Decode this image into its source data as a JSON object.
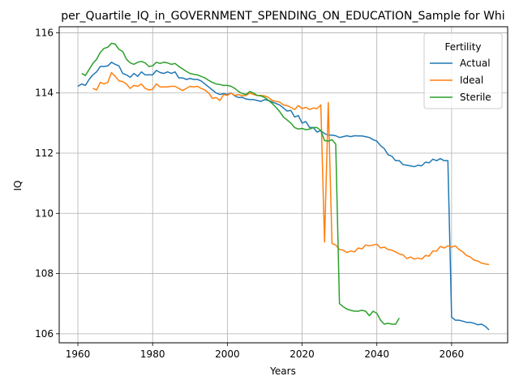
{
  "chart_data": {
    "type": "line",
    "title": "per_Quartile_IQ_in_GOVERNMENT_SPENDING_ON_EDUCATION_Sample for Whi",
    "xlabel": "Years",
    "ylabel": "IQ",
    "xlim": [
      1955,
      2075
    ],
    "ylim": [
      105.7,
      116.2
    ],
    "xticks": [
      1960,
      1980,
      2000,
      2020,
      2040,
      2060
    ],
    "yticks": [
      106,
      108,
      110,
      112,
      114,
      116
    ],
    "grid": true,
    "legend": {
      "title": "Fertility",
      "placement": "top-right"
    },
    "series": [
      {
        "name": "Actual",
        "color": "#1f77b4",
        "x": [
          1960,
          1961,
          1962,
          1963,
          1964,
          1965,
          1966,
          1967,
          1968,
          1969,
          1970,
          1971,
          1972,
          1973,
          1974,
          1975,
          1976,
          1977,
          1978,
          1979,
          1980,
          1981,
          1982,
          1983,
          1984,
          1985,
          1986,
          1987,
          1988,
          1989,
          1990,
          1991,
          1992,
          1993,
          1994,
          1995,
          1996,
          1997,
          1998,
          1999,
          2000,
          2001,
          2002,
          2003,
          2004,
          2005,
          2006,
          2007,
          2008,
          2009,
          2010,
          2011,
          2012,
          2013,
          2014,
          2015,
          2016,
          2017,
          2018,
          2019,
          2020,
          2021,
          2022,
          2023,
          2024,
          2025,
          2026,
          2027,
          2028,
          2029,
          2030,
          2031,
          2032,
          2033,
          2034,
          2035,
          2036,
          2037,
          2038,
          2039,
          2040,
          2041,
          2042,
          2043,
          2044,
          2045,
          2046,
          2047,
          2048,
          2049,
          2050,
          2051,
          2052,
          2053,
          2054,
          2055,
          2056,
          2057,
          2058,
          2059,
          2060,
          2061,
          2062,
          2063,
          2064,
          2065,
          2066,
          2067,
          2068,
          2069,
          2070
        ],
        "values": [
          114.22,
          114.3,
          114.25,
          114.45,
          114.6,
          114.7,
          114.88,
          114.88,
          114.9,
          115.02,
          114.95,
          114.9,
          114.65,
          114.6,
          114.52,
          114.65,
          114.55,
          114.7,
          114.6,
          114.6,
          114.6,
          114.75,
          114.68,
          114.65,
          114.7,
          114.65,
          114.7,
          114.5,
          114.5,
          114.45,
          114.48,
          114.45,
          114.45,
          114.4,
          114.3,
          114.2,
          114.1,
          114.0,
          113.95,
          113.98,
          113.95,
          114.0,
          113.9,
          113.85,
          113.85,
          113.8,
          113.78,
          113.78,
          113.75,
          113.72,
          113.78,
          113.75,
          113.7,
          113.65,
          113.6,
          113.5,
          113.4,
          113.42,
          113.2,
          113.25,
          113.0,
          113.05,
          112.85,
          112.85,
          112.7,
          112.75,
          112.65,
          112.6,
          112.6,
          112.58,
          112.52,
          112.55,
          112.58,
          112.55,
          112.58,
          112.57,
          112.57,
          112.55,
          112.52,
          112.45,
          112.4,
          112.25,
          112.15,
          111.95,
          111.9,
          111.75,
          111.75,
          111.62,
          111.6,
          111.58,
          111.55,
          111.6,
          111.58,
          111.7,
          111.68,
          111.8,
          111.75,
          111.82,
          111.75,
          111.75,
          106.55,
          106.45,
          106.45,
          106.42,
          106.38,
          106.38,
          106.35,
          106.3,
          106.32,
          106.25,
          106.13
        ]
      },
      {
        "name": "Ideal",
        "color": "#ff7f0e",
        "x": [
          1964,
          1965,
          1966,
          1967,
          1968,
          1969,
          1970,
          1971,
          1972,
          1973,
          1974,
          1975,
          1976,
          1977,
          1978,
          1979,
          1980,
          1981,
          1982,
          1983,
          1984,
          1985,
          1986,
          1987,
          1988,
          1989,
          1990,
          1991,
          1992,
          1993,
          1994,
          1995,
          1996,
          1997,
          1998,
          1999,
          2000,
          2001,
          2002,
          2003,
          2004,
          2005,
          2006,
          2007,
          2008,
          2009,
          2010,
          2011,
          2012,
          2013,
          2014,
          2015,
          2016,
          2017,
          2018,
          2019,
          2020,
          2021,
          2022,
          2023,
          2024,
          2025,
          2026,
          2027,
          2028,
          2029,
          2030,
          2031,
          2032,
          2033,
          2034,
          2035,
          2036,
          2037,
          2038,
          2039,
          2040,
          2041,
          2042,
          2043,
          2044,
          2045,
          2046,
          2047,
          2048,
          2049,
          2050,
          2051,
          2052,
          2053,
          2054,
          2055,
          2056,
          2057,
          2058,
          2059,
          2060,
          2061,
          2062,
          2063,
          2064,
          2065,
          2066,
          2067,
          2068,
          2069,
          2070
        ],
        "values": [
          114.15,
          114.1,
          114.35,
          114.3,
          114.35,
          114.68,
          114.55,
          114.4,
          114.38,
          114.3,
          114.15,
          114.25,
          114.22,
          114.3,
          114.15,
          114.1,
          114.12,
          114.3,
          114.2,
          114.2,
          114.2,
          114.22,
          114.22,
          114.15,
          114.08,
          114.15,
          114.22,
          114.2,
          114.22,
          114.15,
          114.1,
          114.0,
          113.82,
          113.85,
          113.75,
          113.95,
          113.92,
          114.0,
          113.92,
          113.95,
          113.9,
          113.92,
          114.0,
          113.95,
          113.92,
          113.92,
          113.9,
          113.85,
          113.75,
          113.72,
          113.7,
          113.6,
          113.58,
          113.52,
          113.45,
          113.58,
          113.48,
          113.52,
          113.45,
          113.5,
          113.48,
          113.6,
          109.05,
          113.68,
          109.0,
          108.95,
          108.8,
          108.78,
          108.7,
          108.75,
          108.72,
          108.85,
          108.82,
          108.95,
          108.92,
          108.95,
          108.98,
          108.85,
          108.88,
          108.8,
          108.78,
          108.72,
          108.65,
          108.62,
          108.5,
          108.55,
          108.48,
          108.52,
          108.48,
          108.6,
          108.58,
          108.75,
          108.75,
          108.9,
          108.85,
          108.92,
          108.88,
          108.92,
          108.8,
          108.72,
          108.6,
          108.55,
          108.45,
          108.42,
          108.35,
          108.32,
          108.3
        ]
      },
      {
        "name": "Sterile",
        "color": "#2ca02c",
        "x": [
          1961,
          1962,
          1963,
          1964,
          1965,
          1966,
          1967,
          1968,
          1969,
          1970,
          1971,
          1972,
          1973,
          1974,
          1975,
          1976,
          1977,
          1978,
          1979,
          1980,
          1981,
          1982,
          1983,
          1984,
          1985,
          1986,
          1987,
          1988,
          1989,
          1990,
          1991,
          1992,
          1993,
          1994,
          1995,
          1996,
          1997,
          1998,
          1999,
          2000,
          2001,
          2002,
          2003,
          2004,
          2005,
          2006,
          2007,
          2008,
          2009,
          2010,
          2011,
          2012,
          2013,
          2014,
          2015,
          2016,
          2017,
          2018,
          2019,
          2020,
          2021,
          2022,
          2023,
          2024,
          2025,
          2026,
          2027,
          2028,
          2029,
          2030,
          2031,
          2032,
          2033,
          2034,
          2035,
          2036,
          2037,
          2038,
          2039,
          2040,
          2041,
          2042,
          2043,
          2044,
          2045,
          2046
        ],
        "values": [
          114.65,
          114.58,
          114.78,
          114.98,
          115.12,
          115.35,
          115.48,
          115.52,
          115.65,
          115.62,
          115.45,
          115.38,
          115.12,
          115.0,
          114.95,
          115.02,
          115.05,
          115.0,
          114.88,
          114.9,
          115.02,
          114.98,
          115.02,
          115.0,
          114.95,
          114.98,
          114.88,
          114.8,
          114.72,
          114.65,
          114.62,
          114.6,
          114.55,
          114.5,
          114.42,
          114.35,
          114.3,
          114.28,
          114.25,
          114.25,
          114.22,
          114.15,
          114.05,
          113.98,
          113.95,
          114.05,
          114.0,
          113.92,
          113.9,
          113.85,
          113.75,
          113.65,
          113.52,
          113.38,
          113.2,
          113.1,
          113.0,
          112.85,
          112.8,
          112.82,
          112.78,
          112.8,
          112.85,
          112.85,
          112.75,
          112.42,
          112.4,
          112.45,
          112.3,
          107.0,
          106.9,
          106.82,
          106.78,
          106.75,
          106.75,
          106.78,
          106.75,
          106.6,
          106.75,
          106.68,
          106.45,
          106.32,
          106.35,
          106.32,
          106.32,
          106.52
        ]
      }
    ]
  }
}
